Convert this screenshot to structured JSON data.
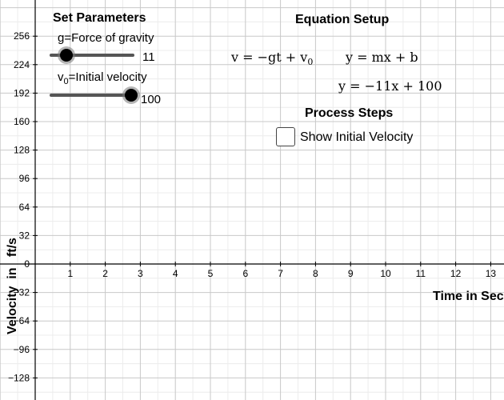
{
  "panel": {
    "title": "Set Parameters",
    "sliders": [
      {
        "label": "g=Force of gravity",
        "value": "11"
      },
      {
        "label_main": "v",
        "label_sub": "0",
        "label_rest": "=Initial velocity",
        "value": "100"
      }
    ]
  },
  "equations": {
    "title": "Equation Setup",
    "physics_eq": "v = −gt + v",
    "physics_sub": "0",
    "general_eq": "y = mx + b",
    "specific_eq": "y = −11x + 100"
  },
  "steps": {
    "title": "Process Steps",
    "checkbox_label": "Show Initial Velocity"
  },
  "axes": {
    "x_label": "Time in Seco",
    "y_label": "Velocity  in   ft/s",
    "x_ticks": [
      "1",
      "2",
      "3",
      "4",
      "5",
      "6",
      "7",
      "8",
      "9",
      "10",
      "11",
      "12",
      "13"
    ],
    "y_ticks": [
      "256",
      "224",
      "192",
      "160",
      "128",
      "96",
      "64",
      "32",
      "0",
      "−32",
      "−64",
      "−96",
      "−128"
    ],
    "y_zero_label": "0"
  }
}
